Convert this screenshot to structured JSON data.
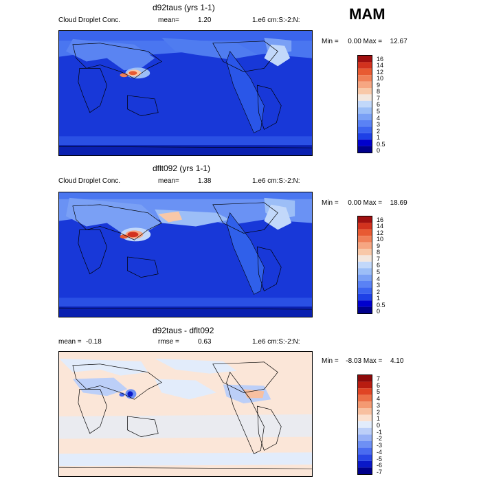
{
  "season": "MAM",
  "panels": [
    {
      "title": "d92taus (yrs 1-1)",
      "left_text": "Cloud Droplet Conc.",
      "stat_label": "mean=",
      "stat_value": "1.20",
      "right_text": "1.e6 cm:S:-2:N:",
      "min_label": "Min =",
      "min_value": "0.00",
      "max_label": "Max =",
      "max_value": "12.67",
      "cbar_labels": [
        "16",
        "14",
        "12",
        "10",
        "9",
        "8",
        "7",
        "6",
        "5",
        "4",
        "3",
        "2",
        "1",
        "0.5",
        "0"
      ]
    },
    {
      "title": "dflt092 (yrs 1-1)",
      "left_text": "Cloud Droplet Conc.",
      "stat_label": "mean=",
      "stat_value": "1.38",
      "right_text": "1.e6 cm:S:-2:N:",
      "min_label": "Min =",
      "min_value": "0.00",
      "max_label": "Max =",
      "max_value": "18.69",
      "cbar_labels": [
        "16",
        "14",
        "12",
        "10",
        "9",
        "8",
        "7",
        "6",
        "5",
        "4",
        "3",
        "2",
        "1",
        "0.5",
        "0"
      ]
    },
    {
      "title": "d92taus - dflt092",
      "left_label": "mean =",
      "left_value": "-0.18",
      "stat_label": "rmse =",
      "stat_value": "0.63",
      "right_text": "1.e6 cm:S:-2:N:",
      "min_label": "Min =",
      "min_value": "-8.03",
      "max_label": "Max =",
      "max_value": "4.10",
      "cbar_labels": [
        "7",
        "6",
        "5",
        "4",
        "3",
        "2",
        "1",
        "0",
        "-1",
        "-2",
        "-3",
        "-4",
        "-5",
        "-6",
        "-7"
      ]
    }
  ],
  "colors": {
    "abs_scale": [
      "#00008b",
      "#0000cd",
      "#1e40e6",
      "#3c64f0",
      "#5a82f5",
      "#7aa0f5",
      "#9cbef7",
      "#c2d8fa",
      "#f3e7de",
      "#f8c8a8",
      "#f6a682",
      "#f08058",
      "#e85a32",
      "#d2321e",
      "#a01010"
    ],
    "diff_scale": [
      "#00008b",
      "#0a18c8",
      "#2846e6",
      "#4a6cf0",
      "#6e90f4",
      "#96b0f6",
      "#bccff8",
      "#e2ecfb",
      "#fbe1d0",
      "#f8c0a0",
      "#f49a72",
      "#ec7048",
      "#e04424",
      "#b81c10",
      "#8c0a0a"
    ],
    "ocean_abs": "#1a3ee0",
    "diff_bg": "#fbe6d8"
  }
}
